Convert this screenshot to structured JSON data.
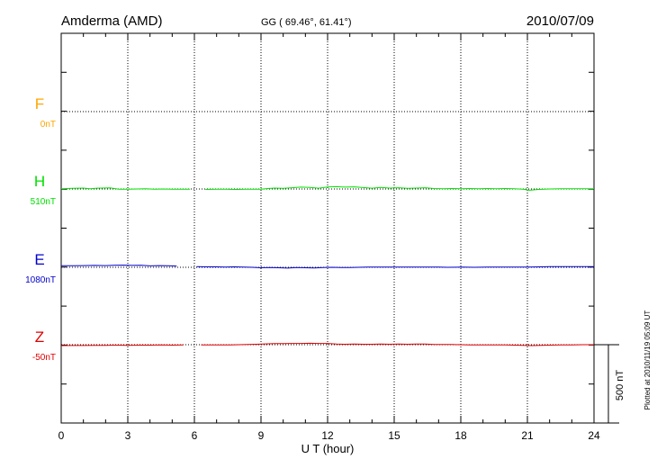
{
  "header": {
    "station": "Amderma (AMD)",
    "coords": "GG ( 69.46°,  61.41°)",
    "date": "2010/07/09"
  },
  "footer": {
    "plotted_at": "Plotted at 2010/11/19 05:09 UT"
  },
  "chart_data": {
    "type": "line",
    "xlabel": "U T (hour)",
    "xlim": [
      0,
      24
    ],
    "x_ticks": [
      "0",
      "3",
      "6",
      "9",
      "12",
      "15",
      "18",
      "21",
      "24"
    ],
    "grid": true,
    "scale_bar": {
      "label": "500 nT",
      "value_nT": 500
    },
    "series": [
      {
        "name": "F",
        "baseline": "0nT",
        "color": "#ffa500",
        "points": []
      },
      {
        "name": "H",
        "baseline": "510nT",
        "color": "#00e000",
        "points": [
          [
            0,
            1.5
          ],
          [
            0.5,
            4
          ],
          [
            1,
            6
          ],
          [
            1.3,
            2
          ],
          [
            1.6,
            5
          ],
          [
            2.2,
            7
          ],
          [
            2.6,
            -2
          ],
          [
            3,
            -1
          ],
          [
            3.4,
            0
          ],
          [
            3.8,
            1
          ],
          [
            4.2,
            -1
          ],
          [
            4.6,
            0
          ],
          [
            5.0,
            -1
          ],
          [
            5.4,
            -2
          ],
          [
            5.8,
            -1
          ],
          [
            null,
            null
          ],
          [
            6.5,
            -3
          ],
          [
            7.0,
            -2
          ],
          [
            7.5,
            -2
          ],
          [
            7.9,
            -3
          ],
          [
            8.3,
            -1
          ],
          [
            8.7,
            -2
          ],
          [
            9.0,
            -2
          ],
          [
            9.3,
            3
          ],
          [
            9.6,
            6
          ],
          [
            10,
            4
          ],
          [
            10.4,
            8
          ],
          [
            10.8,
            12
          ],
          [
            11.2,
            10
          ],
          [
            11.6,
            5
          ],
          [
            12,
            13
          ],
          [
            12.4,
            15
          ],
          [
            12.8,
            12
          ],
          [
            13.2,
            14
          ],
          [
            13.6,
            9
          ],
          [
            14,
            5
          ],
          [
            14.4,
            10
          ],
          [
            14.8,
            6
          ],
          [
            15.2,
            8
          ],
          [
            15.6,
            4
          ],
          [
            16,
            6
          ],
          [
            16.4,
            8
          ],
          [
            16.8,
            3
          ],
          [
            17.2,
            2
          ],
          [
            17.6,
            3
          ],
          [
            18,
            2
          ],
          [
            18.4,
            3
          ],
          [
            18.8,
            2
          ],
          [
            19.2,
            3
          ],
          [
            19.6,
            2
          ],
          [
            20,
            3
          ],
          [
            20.4,
            1
          ],
          [
            20.8,
            -2
          ],
          [
            21.1,
            -8
          ],
          [
            21.5,
            -3
          ],
          [
            22,
            0
          ],
          [
            22.5,
            1
          ],
          [
            23,
            2
          ],
          [
            23.5,
            1
          ],
          [
            24,
            1
          ]
        ]
      },
      {
        "name": "E",
        "baseline": "1080nT",
        "color": "#0000cc",
        "points": [
          [
            0,
            10
          ],
          [
            0.5,
            10
          ],
          [
            1,
            11
          ],
          [
            1.5,
            12
          ],
          [
            2,
            11
          ],
          [
            2.4,
            13
          ],
          [
            2.8,
            14
          ],
          [
            3.2,
            12
          ],
          [
            3.6,
            13
          ],
          [
            4.0,
            9
          ],
          [
            4.4,
            11
          ],
          [
            4.8,
            10
          ],
          [
            5.2,
            8
          ],
          [
            null,
            null
          ],
          [
            6.1,
            4
          ],
          [
            6.6,
            3
          ],
          [
            7.0,
            3
          ],
          [
            7.4,
            2
          ],
          [
            7.8,
            3
          ],
          [
            8.2,
            1
          ],
          [
            8.6,
            0
          ],
          [
            9.0,
            -3
          ],
          [
            9.4,
            -2
          ],
          [
            9.8,
            -3
          ],
          [
            10.2,
            -5
          ],
          [
            10.6,
            -1
          ],
          [
            11,
            -3
          ],
          [
            11.4,
            -4
          ],
          [
            11.8,
            -2
          ],
          [
            12.2,
            0
          ],
          [
            12.6,
            -1
          ],
          [
            13,
            -2
          ],
          [
            13.4,
            0
          ],
          [
            13.8,
            2
          ],
          [
            14.2,
            2
          ],
          [
            14.6,
            2
          ],
          [
            15,
            1
          ],
          [
            15.4,
            2
          ],
          [
            15.8,
            1
          ],
          [
            16.2,
            2
          ],
          [
            16.6,
            1
          ],
          [
            17,
            2
          ],
          [
            17.4,
            0
          ],
          [
            18,
            1
          ],
          [
            18.6,
            0
          ],
          [
            19.2,
            1
          ],
          [
            19.8,
            1
          ],
          [
            20.4,
            1
          ],
          [
            21,
            2
          ],
          [
            21.6,
            3
          ],
          [
            22,
            4
          ],
          [
            22.6,
            4
          ],
          [
            23.2,
            4
          ],
          [
            24,
            4
          ]
        ]
      },
      {
        "name": "Z",
        "baseline": "-50nT",
        "color": "#e00000",
        "points": [
          [
            0,
            -6
          ],
          [
            0.5,
            -5
          ],
          [
            1,
            -5
          ],
          [
            1.5,
            -4
          ],
          [
            2,
            -4
          ],
          [
            2.5,
            -3
          ],
          [
            3,
            -4
          ],
          [
            3.5,
            -3
          ],
          [
            4,
            -3
          ],
          [
            4.5,
            -2
          ],
          [
            5,
            -3
          ],
          [
            5.5,
            -2
          ],
          [
            null,
            null
          ],
          [
            6.3,
            -2
          ],
          [
            6.8,
            -2
          ],
          [
            7.2,
            -1
          ],
          [
            7.6,
            -1
          ],
          [
            8,
            0
          ],
          [
            8.4,
            1
          ],
          [
            8.8,
            3
          ],
          [
            9.2,
            5
          ],
          [
            9.6,
            7
          ],
          [
            10,
            7
          ],
          [
            10.4,
            8
          ],
          [
            10.8,
            8
          ],
          [
            11.2,
            9
          ],
          [
            11.6,
            8
          ],
          [
            12,
            8
          ],
          [
            12.4,
            4
          ],
          [
            12.8,
            3
          ],
          [
            13.2,
            4
          ],
          [
            13.6,
            3
          ],
          [
            14,
            3
          ],
          [
            14.4,
            4
          ],
          [
            14.8,
            3
          ],
          [
            15.2,
            4
          ],
          [
            15.6,
            3
          ],
          [
            16,
            4
          ],
          [
            16.4,
            4
          ],
          [
            16.8,
            2
          ],
          [
            17.2,
            2
          ],
          [
            17.6,
            1
          ],
          [
            18,
            0
          ],
          [
            18.4,
            -1
          ],
          [
            18.8,
            -1
          ],
          [
            19.2,
            -1
          ],
          [
            19.6,
            -1
          ],
          [
            20,
            -2
          ],
          [
            20.4,
            -3
          ],
          [
            20.8,
            -4
          ],
          [
            21.2,
            -6
          ],
          [
            21.6,
            -4
          ],
          [
            22,
            -3
          ],
          [
            22.5,
            -2
          ],
          [
            23,
            -1
          ],
          [
            23.5,
            0
          ],
          [
            24,
            0
          ]
        ]
      }
    ]
  }
}
